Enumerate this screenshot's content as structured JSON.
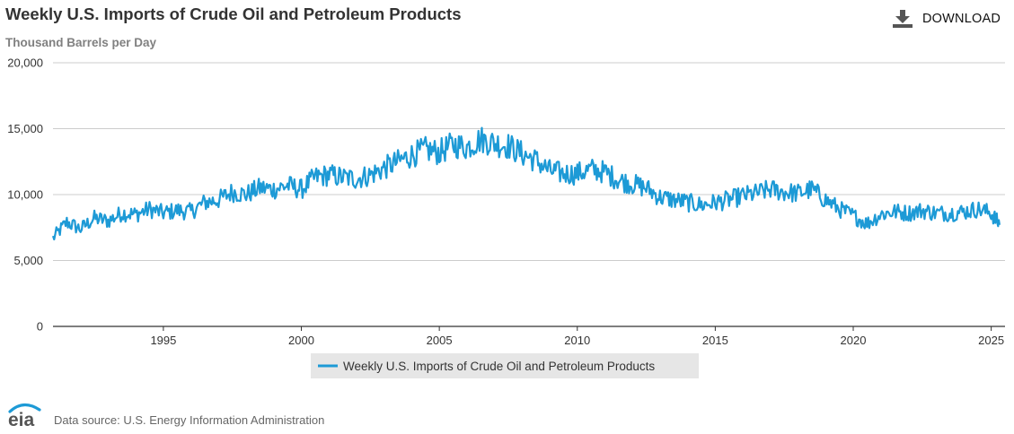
{
  "header": {
    "title": "Weekly U.S. Imports of Crude Oil and Petroleum Products",
    "units": "Thousand Barrels per Day",
    "download_label": "DOWNLOAD",
    "download_icon": "download-icon"
  },
  "footer": {
    "logo_text": "eia",
    "source": "Data source: U.S. Energy Information Administration"
  },
  "colors": {
    "series": "#1d9ad6",
    "grid": "#cccccc",
    "legend_bg": "#e6e6e6"
  },
  "chart_data": {
    "type": "line",
    "title": "Weekly U.S. Imports of Crude Oil and Petroleum Products",
    "xlabel": "",
    "ylabel": "Thousand Barrels per Day",
    "xlim": [
      1991.0,
      2025.5
    ],
    "ylim": [
      0,
      20000
    ],
    "y_ticks": [
      0,
      5000,
      10000,
      15000,
      20000
    ],
    "y_tick_labels": [
      "0",
      "5,000",
      "10,000",
      "15,000",
      "20,000"
    ],
    "x_ticks": [
      1995,
      2000,
      2005,
      2010,
      2015,
      2020,
      2025
    ],
    "x_tick_labels": [
      "1995",
      "2000",
      "2005",
      "2010",
      "2015",
      "2020",
      "2025"
    ],
    "grid": true,
    "legend_position": "bottom-center",
    "series": [
      {
        "name": "Weekly U.S. Imports of Crude Oil and Petroleum Products",
        "x": [
          1991.0,
          1991.5,
          1992.0,
          1992.5,
          1993.0,
          1993.5,
          1994.0,
          1994.5,
          1995.0,
          1995.5,
          1996.0,
          1996.5,
          1997.0,
          1997.5,
          1998.0,
          1998.5,
          1999.0,
          1999.5,
          2000.0,
          2000.5,
          2001.0,
          2001.5,
          2002.0,
          2002.5,
          2003.0,
          2003.5,
          2004.0,
          2004.5,
          2005.0,
          2005.5,
          2006.0,
          2006.5,
          2007.0,
          2007.5,
          2008.0,
          2008.5,
          2009.0,
          2009.5,
          2010.0,
          2010.5,
          2011.0,
          2011.5,
          2012.0,
          2012.5,
          2013.0,
          2013.5,
          2014.0,
          2014.5,
          2015.0,
          2015.5,
          2016.0,
          2016.5,
          2017.0,
          2017.5,
          2018.0,
          2018.5,
          2019.0,
          2019.5,
          2020.0,
          2020.5,
          2021.0,
          2021.5,
          2022.0,
          2022.5,
          2023.0,
          2023.5,
          2024.0,
          2024.5,
          2025.0,
          2025.3
        ],
        "values": [
          6700,
          7900,
          7400,
          8200,
          8000,
          8600,
          8500,
          8900,
          8600,
          8800,
          8700,
          9400,
          9600,
          10200,
          10000,
          10500,
          10400,
          10700,
          10400,
          11300,
          11500,
          11300,
          11200,
          11500,
          12000,
          12500,
          13000,
          13400,
          13200,
          13800,
          13600,
          14200,
          13900,
          13700,
          13100,
          12600,
          11800,
          11600,
          11600,
          11900,
          11700,
          11100,
          10800,
          10500,
          9800,
          9600,
          9400,
          9200,
          9400,
          9600,
          9900,
          10100,
          10400,
          10200,
          10100,
          10400,
          9600,
          8900,
          8400,
          7800,
          8500,
          8700,
          8600,
          8800,
          8600,
          8600,
          8700,
          8900,
          8600,
          7700
        ]
      }
    ]
  }
}
